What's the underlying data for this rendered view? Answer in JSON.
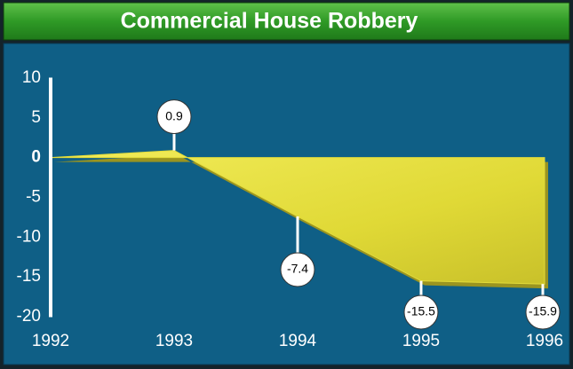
{
  "chart_data": {
    "type": "area",
    "title": "Commercial House Robbery",
    "categories": [
      "1992",
      "1993",
      "1994",
      "1995",
      "1996"
    ],
    "values": [
      0,
      0.9,
      -7.4,
      -15.5,
      -15.9
    ],
    "value_labels": [
      null,
      "0.9",
      "-7.4",
      "-15.5",
      "-15.9"
    ],
    "color": "#e3dc3a",
    "ylim": [
      -20,
      10
    ],
    "yticks": [
      10,
      5,
      0,
      -5,
      -10,
      -15,
      -20
    ]
  }
}
